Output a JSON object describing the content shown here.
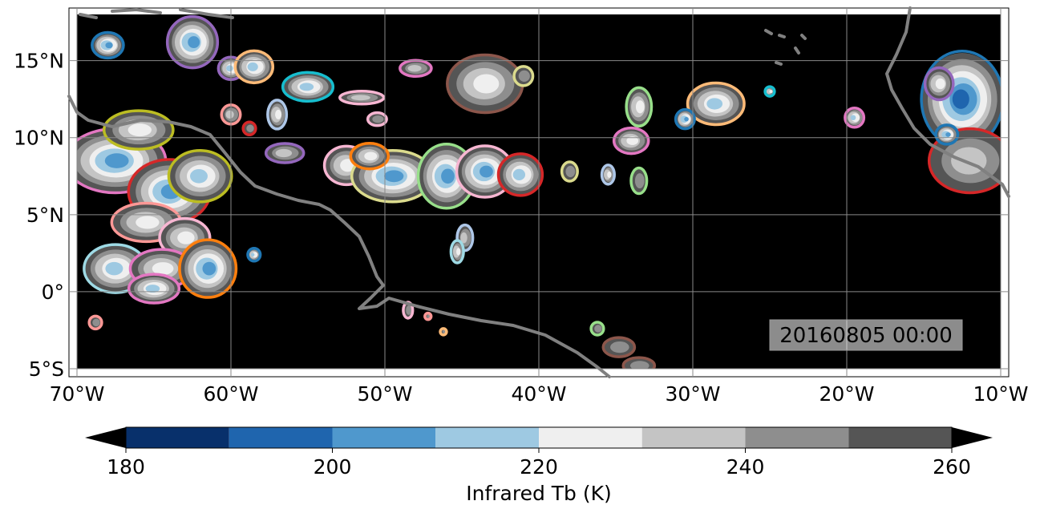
{
  "map": {
    "timestamp": "20160805 00:00",
    "x_ticks": [
      {
        "value": -70,
        "label": "70°W"
      },
      {
        "value": -60,
        "label": "60°W"
      },
      {
        "value": -50,
        "label": "50°W"
      },
      {
        "value": -40,
        "label": "40°W"
      },
      {
        "value": -30,
        "label": "30°W"
      },
      {
        "value": -20,
        "label": "20°W"
      },
      {
        "value": -10,
        "label": "10°W"
      }
    ],
    "y_ticks": [
      {
        "value": 15,
        "label": "15°N"
      },
      {
        "value": 10,
        "label": "10°N"
      },
      {
        "value": 5,
        "label": "5°N"
      },
      {
        "value": 0,
        "label": "0°"
      },
      {
        "value": -5,
        "label": "5°S"
      }
    ],
    "lon_range": [
      -70,
      -10
    ],
    "lat_range": [
      -5,
      18
    ],
    "gridlines": true,
    "background_color": "#000000",
    "coastline_color": "#808080"
  },
  "colorbar": {
    "label": "Infrared Tb (K)",
    "min": 180,
    "max": 260,
    "extend": "both",
    "under_color": "#000000",
    "over_color": "#000000",
    "bins": [
      {
        "from": 180,
        "to": 190,
        "color": "#08306b"
      },
      {
        "from": 190,
        "to": 200,
        "color": "#1f65ae"
      },
      {
        "from": 200,
        "to": 210,
        "color": "#4f98cd"
      },
      {
        "from": 210,
        "to": 220,
        "color": "#9ec9e2"
      },
      {
        "from": 220,
        "to": 230,
        "color": "#efefef"
      },
      {
        "from": 230,
        "to": 240,
        "color": "#c4c4c4"
      },
      {
        "from": 240,
        "to": 250,
        "color": "#8e8e8e"
      },
      {
        "from": 250,
        "to": 260,
        "color": "#555555"
      }
    ],
    "ticks": [
      {
        "value": 180,
        "label": "180"
      },
      {
        "value": 200,
        "label": "200"
      },
      {
        "value": 220,
        "label": "220"
      },
      {
        "value": 240,
        "label": "240"
      },
      {
        "value": 260,
        "label": "260"
      }
    ]
  },
  "clouds": [
    {
      "lon": -67.5,
      "lat": 8.5,
      "rx": 3.2,
      "ry": 2.0,
      "core": 200,
      "outline": "#e377c2"
    },
    {
      "lon": -64.0,
      "lat": 6.5,
      "rx": 2.6,
      "ry": 2.0,
      "core": 200,
      "outline": "#d62728"
    },
    {
      "lon": -62.0,
      "lat": 7.5,
      "rx": 2.0,
      "ry": 1.6,
      "core": 210,
      "outline": "#bcbd22"
    },
    {
      "lon": -66.0,
      "lat": 10.5,
      "rx": 2.2,
      "ry": 1.2,
      "core": 220,
      "outline": "#bcbd22"
    },
    {
      "lon": -65.5,
      "lat": 4.5,
      "rx": 2.2,
      "ry": 1.2,
      "core": 220,
      "outline": "#ff9896"
    },
    {
      "lon": -63.0,
      "lat": 3.5,
      "rx": 1.6,
      "ry": 1.2,
      "core": 220,
      "outline": "#f7b6d2"
    },
    {
      "lon": -67.5,
      "lat": 1.5,
      "rx": 2.0,
      "ry": 1.5,
      "core": 210,
      "outline": "#9edae5"
    },
    {
      "lon": -64.5,
      "lat": 1.5,
      "rx": 2.0,
      "ry": 1.2,
      "core": 220,
      "outline": "#e377c2"
    },
    {
      "lon": -61.5,
      "lat": 1.5,
      "rx": 1.8,
      "ry": 1.8,
      "core": 200,
      "outline": "#ff7f0e"
    },
    {
      "lon": -65.0,
      "lat": 0.2,
      "rx": 1.6,
      "ry": 0.9,
      "core": 210,
      "outline": "#e377c2"
    },
    {
      "lon": -62.5,
      "lat": 16.2,
      "rx": 1.6,
      "ry": 1.6,
      "core": 200,
      "outline": "#9467bd"
    },
    {
      "lon": -68.0,
      "lat": 16.0,
      "rx": 1.0,
      "ry": 0.8,
      "core": 200,
      "outline": "#1f77b4"
    },
    {
      "lon": -60.0,
      "lat": 14.5,
      "rx": 0.8,
      "ry": 0.7,
      "core": 210,
      "outline": "#9467bd"
    },
    {
      "lon": -58.5,
      "lat": 14.6,
      "rx": 1.2,
      "ry": 1.0,
      "core": 210,
      "outline": "#ffbb78"
    },
    {
      "lon": -55.0,
      "lat": 13.3,
      "rx": 1.6,
      "ry": 0.9,
      "core": 210,
      "outline": "#17becf"
    },
    {
      "lon": -51.5,
      "lat": 12.6,
      "rx": 1.4,
      "ry": 0.4,
      "core": 230,
      "outline": "#f7b6d2"
    },
    {
      "lon": -57.0,
      "lat": 11.5,
      "rx": 0.6,
      "ry": 0.9,
      "core": 220,
      "outline": "#aec7e8"
    },
    {
      "lon": -60.0,
      "lat": 11.5,
      "rx": 0.6,
      "ry": 0.6,
      "core": 230,
      "outline": "#ff9896"
    },
    {
      "lon": -58.8,
      "lat": 10.6,
      "rx": 0.4,
      "ry": 0.4,
      "core": 240,
      "outline": "#d62728"
    },
    {
      "lon": -56.5,
      "lat": 9.0,
      "rx": 1.2,
      "ry": 0.6,
      "core": 230,
      "outline": "#9467bd"
    },
    {
      "lon": -48.0,
      "lat": 14.5,
      "rx": 1.0,
      "ry": 0.5,
      "core": 230,
      "outline": "#e377c2"
    },
    {
      "lon": -43.5,
      "lat": 13.5,
      "rx": 2.4,
      "ry": 1.8,
      "core": 220,
      "outline": "#8c564b"
    },
    {
      "lon": -41.0,
      "lat": 14.0,
      "rx": 0.6,
      "ry": 0.6,
      "core": 240,
      "outline": "#dbdb8d"
    },
    {
      "lon": -50.5,
      "lat": 11.2,
      "rx": 0.6,
      "ry": 0.4,
      "core": 240,
      "outline": "#f7b6d2"
    },
    {
      "lon": -52.5,
      "lat": 8.2,
      "rx": 1.4,
      "ry": 1.2,
      "core": 220,
      "outline": "#f7b6d2"
    },
    {
      "lon": -49.5,
      "lat": 7.5,
      "rx": 2.6,
      "ry": 1.6,
      "core": 200,
      "outline": "#dbdb8d"
    },
    {
      "lon": -46.0,
      "lat": 7.5,
      "rx": 1.8,
      "ry": 2.0,
      "core": 200,
      "outline": "#98df8a"
    },
    {
      "lon": -43.5,
      "lat": 7.8,
      "rx": 1.8,
      "ry": 1.6,
      "core": 200,
      "outline": "#f7b6d2"
    },
    {
      "lon": -41.2,
      "lat": 7.6,
      "rx": 1.4,
      "ry": 1.3,
      "core": 210,
      "outline": "#d62728"
    },
    {
      "lon": -51.0,
      "lat": 8.8,
      "rx": 1.2,
      "ry": 0.8,
      "core": 220,
      "outline": "#ff7f0e"
    },
    {
      "lon": -44.8,
      "lat": 3.5,
      "rx": 0.5,
      "ry": 0.8,
      "core": 230,
      "outline": "#aec7e8"
    },
    {
      "lon": -45.3,
      "lat": 2.6,
      "rx": 0.4,
      "ry": 0.7,
      "core": 220,
      "outline": "#9edae5"
    },
    {
      "lon": -33.5,
      "lat": 12.0,
      "rx": 0.8,
      "ry": 1.2,
      "core": 220,
      "outline": "#98df8a"
    },
    {
      "lon": -34.0,
      "lat": 9.8,
      "rx": 1.1,
      "ry": 0.8,
      "core": 220,
      "outline": "#e377c2"
    },
    {
      "lon": -33.5,
      "lat": 7.2,
      "rx": 0.5,
      "ry": 0.8,
      "core": 240,
      "outline": "#98df8a"
    },
    {
      "lon": -38.0,
      "lat": 7.8,
      "rx": 0.5,
      "ry": 0.6,
      "core": 240,
      "outline": "#dbdb8d"
    },
    {
      "lon": -35.5,
      "lat": 7.6,
      "rx": 0.4,
      "ry": 0.6,
      "core": 220,
      "outline": "#aec7e8"
    },
    {
      "lon": -28.5,
      "lat": 12.2,
      "rx": 1.8,
      "ry": 1.3,
      "core": 210,
      "outline": "#ffbb78"
    },
    {
      "lon": -30.5,
      "lat": 11.2,
      "rx": 0.6,
      "ry": 0.6,
      "core": 200,
      "outline": "#1f77b4"
    },
    {
      "lon": -25.0,
      "lat": 13.0,
      "rx": 0.3,
      "ry": 0.3,
      "core": 220,
      "outline": "#17becf"
    },
    {
      "lon": -19.5,
      "lat": 11.3,
      "rx": 0.6,
      "ry": 0.6,
      "core": 210,
      "outline": "#e377c2"
    },
    {
      "lon": -12.5,
      "lat": 12.5,
      "rx": 2.6,
      "ry": 3.0,
      "core": 190,
      "outline": "#1f77b4"
    },
    {
      "lon": -12.0,
      "lat": 8.5,
      "rx": 2.6,
      "ry": 2.0,
      "core": 230,
      "outline": "#d62728"
    },
    {
      "lon": -14.0,
      "lat": 13.5,
      "rx": 0.9,
      "ry": 1.0,
      "core": 220,
      "outline": "#9467bd"
    },
    {
      "lon": -13.5,
      "lat": 10.2,
      "rx": 0.7,
      "ry": 0.6,
      "core": 200,
      "outline": "#1f77b4"
    },
    {
      "lon": -58.5,
      "lat": 2.4,
      "rx": 0.4,
      "ry": 0.4,
      "core": 210,
      "outline": "#1f77b4"
    },
    {
      "lon": -48.5,
      "lat": -1.2,
      "rx": 0.3,
      "ry": 0.5,
      "core": 240,
      "outline": "#f7b6d2"
    },
    {
      "lon": -47.2,
      "lat": -1.6,
      "rx": 0.2,
      "ry": 0.2,
      "core": 240,
      "outline": "#ff9896"
    },
    {
      "lon": -46.2,
      "lat": -2.6,
      "rx": 0.2,
      "ry": 0.2,
      "core": 240,
      "outline": "#ffbb78"
    },
    {
      "lon": -36.2,
      "lat": -2.4,
      "rx": 0.4,
      "ry": 0.4,
      "core": 240,
      "outline": "#98df8a"
    },
    {
      "lon": -34.8,
      "lat": -3.6,
      "rx": 1.0,
      "ry": 0.6,
      "core": 240,
      "outline": "#8c564b"
    },
    {
      "lon": -33.5,
      "lat": -4.8,
      "rx": 1.0,
      "ry": 0.5,
      "core": 240,
      "outline": "#8c564b"
    },
    {
      "lon": -68.8,
      "lat": -2.0,
      "rx": 0.4,
      "ry": 0.4,
      "core": 240,
      "outline": "#ff9896"
    }
  ]
}
